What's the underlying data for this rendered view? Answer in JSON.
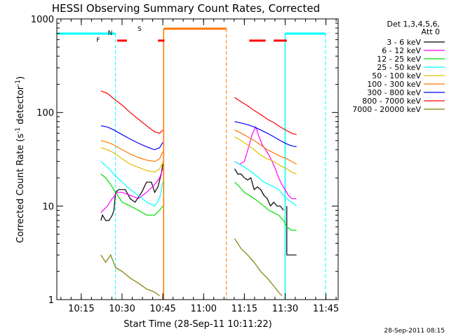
{
  "chart_data": {
    "type": "line",
    "title": "HESSI Observing Summary Count Rates, Corrected",
    "xlabel": "Start Time (28-Sep-11 10:11:22)",
    "ylabel_parts": [
      "Corrected Count Rate (s",
      "-1",
      " detector",
      "-1",
      ")"
    ],
    "y_scale": "log",
    "ylim": [
      1,
      1000
    ],
    "y_ticks": [
      {
        "v": 1,
        "label": "1"
      },
      {
        "v": 10,
        "label": "10"
      },
      {
        "v": 100,
        "label": "100"
      },
      {
        "v": 1000,
        "label": "1000"
      }
    ],
    "xlim": [
      10.1,
      11.825
    ],
    "x_ticks": [
      {
        "v": 10.25,
        "label": "10:15"
      },
      {
        "v": 10.5,
        "label": "10:30"
      },
      {
        "v": 10.75,
        "label": "10:45"
      },
      {
        "v": 11.0,
        "label": "11:00"
      },
      {
        "v": 11.25,
        "label": "11:15"
      },
      {
        "v": 11.5,
        "label": "11:30"
      },
      {
        "v": 11.75,
        "label": "11:45"
      }
    ],
    "legend_header": [
      "Det 1,3,4,5,6,",
      "Att 0"
    ],
    "legend_placement": "right",
    "series": [
      {
        "name": "3 - 6 keV",
        "color": "#000000",
        "ranges": [
          [
            [
              10.37,
              7
            ],
            [
              10.38,
              8
            ],
            [
              10.4,
              7
            ],
            [
              10.42,
              7
            ],
            [
              10.44,
              8
            ],
            [
              10.45,
              9
            ],
            [
              10.46,
              14
            ],
            [
              10.48,
              15
            ],
            [
              10.52,
              15
            ],
            [
              10.55,
              12
            ],
            [
              10.58,
              11
            ],
            [
              10.62,
              14
            ],
            [
              10.65,
              18
            ],
            [
              10.68,
              18
            ],
            [
              10.7,
              14
            ],
            [
              10.72,
              16
            ],
            [
              10.74,
              22
            ],
            [
              10.75,
              28
            ]
          ],
          [
            [
              11.19,
              25
            ],
            [
              11.21,
              22
            ],
            [
              11.23,
              22
            ],
            [
              11.25,
              20
            ],
            [
              11.27,
              19
            ],
            [
              11.29,
              20
            ],
            [
              11.31,
              15
            ],
            [
              11.33,
              16
            ],
            [
              11.35,
              15
            ],
            [
              11.37,
              13
            ],
            [
              11.39,
              12
            ],
            [
              11.41,
              10
            ],
            [
              11.43,
              11
            ],
            [
              11.45,
              10
            ],
            [
              11.47,
              10
            ],
            [
              11.49,
              9
            ]
          ],
          [
            [
              11.51,
              10
            ],
            [
              11.51,
              3
            ],
            [
              11.53,
              3
            ],
            [
              11.55,
              3
            ],
            [
              11.57,
              3
            ]
          ]
        ]
      },
      {
        "name": "6 - 12 keV",
        "color": "#ff00ff",
        "ranges": [
          [
            [
              10.37,
              8.5
            ],
            [
              10.41,
              10
            ],
            [
              10.44,
              12
            ],
            [
              10.47,
              14
            ],
            [
              10.5,
              14
            ],
            [
              10.55,
              13
            ],
            [
              10.6,
              12
            ],
            [
              10.65,
              14
            ],
            [
              10.7,
              17
            ],
            [
              10.73,
              20
            ],
            [
              10.75,
              25
            ]
          ],
          [
            [
              11.19,
              30
            ],
            [
              11.22,
              28
            ],
            [
              11.25,
              30
            ],
            [
              11.28,
              45
            ],
            [
              11.3,
              60
            ],
            [
              11.32,
              70
            ],
            [
              11.34,
              55
            ],
            [
              11.36,
              45
            ],
            [
              11.38,
              40
            ],
            [
              11.4,
              35
            ],
            [
              11.42,
              30
            ],
            [
              11.44,
              25
            ],
            [
              11.46,
              20
            ],
            [
              11.48,
              17
            ],
            [
              11.5,
              15
            ],
            [
              11.52,
              13
            ],
            [
              11.54,
              12
            ],
            [
              11.56,
              12
            ],
            [
              11.57,
              12
            ]
          ]
        ]
      },
      {
        "name": "12 - 25 keV",
        "color": "#00dd00",
        "ranges": [
          [
            [
              10.37,
              22
            ],
            [
              10.4,
              20
            ],
            [
              10.43,
              17
            ],
            [
              10.46,
              14
            ],
            [
              10.5,
              11
            ],
            [
              10.55,
              10
            ],
            [
              10.6,
              9
            ],
            [
              10.65,
              8
            ],
            [
              10.7,
              8
            ],
            [
              10.73,
              9
            ],
            [
              10.75,
              10
            ]
          ],
          [
            [
              11.19,
              18
            ],
            [
              11.22,
              16
            ],
            [
              11.25,
              14
            ],
            [
              11.28,
              13
            ],
            [
              11.31,
              12
            ],
            [
              11.34,
              11
            ],
            [
              11.37,
              10
            ],
            [
              11.4,
              9
            ],
            [
              11.43,
              8.5
            ],
            [
              11.46,
              8
            ],
            [
              11.49,
              7
            ],
            [
              11.51,
              6
            ],
            [
              11.54,
              5.5
            ],
            [
              11.57,
              5.5
            ]
          ]
        ]
      },
      {
        "name": "25 - 50 keV",
        "color": "#00ffff",
        "ranges": [
          [
            [
              10.37,
              30
            ],
            [
              10.4,
              27
            ],
            [
              10.43,
              24
            ],
            [
              10.46,
              21
            ],
            [
              10.5,
              18
            ],
            [
              10.55,
              15
            ],
            [
              10.6,
              13
            ],
            [
              10.65,
              11
            ],
            [
              10.7,
              10
            ],
            [
              10.73,
              12
            ],
            [
              10.75,
              18
            ]
          ],
          [
            [
              11.19,
              30
            ],
            [
              11.22,
              28
            ],
            [
              11.25,
              26
            ],
            [
              11.28,
              24
            ],
            [
              11.31,
              22
            ],
            [
              11.34,
              20
            ],
            [
              11.37,
              18
            ],
            [
              11.4,
              17
            ],
            [
              11.43,
              16
            ],
            [
              11.46,
              15
            ],
            [
              11.49,
              13
            ],
            [
              11.51,
              12
            ],
            [
              11.54,
              11
            ],
            [
              11.57,
              10
            ]
          ]
        ]
      },
      {
        "name": "50 - 100 keV",
        "color": "#e0c000",
        "ranges": [
          [
            [
              10.37,
              42
            ],
            [
              10.41,
              40
            ],
            [
              10.45,
              37
            ],
            [
              10.5,
              32
            ],
            [
              10.55,
              28
            ],
            [
              10.6,
              26
            ],
            [
              10.65,
              24
            ],
            [
              10.7,
              23
            ],
            [
              10.73,
              25
            ],
            [
              10.75,
              30
            ]
          ],
          [
            [
              11.19,
              55
            ],
            [
              11.23,
              50
            ],
            [
              11.27,
              45
            ],
            [
              11.31,
              40
            ],
            [
              11.35,
              35
            ],
            [
              11.39,
              32
            ],
            [
              11.43,
              30
            ],
            [
              11.47,
              27
            ],
            [
              11.51,
              25
            ],
            [
              11.54,
              23
            ],
            [
              11.57,
              22
            ]
          ]
        ]
      },
      {
        "name": "100 - 300 keV",
        "color": "#ff7700",
        "ranges": [
          [
            [
              10.37,
              50
            ],
            [
              10.41,
              48
            ],
            [
              10.45,
              45
            ],
            [
              10.5,
              40
            ],
            [
              10.55,
              36
            ],
            [
              10.6,
              33
            ],
            [
              10.65,
              31
            ],
            [
              10.7,
              30
            ],
            [
              10.73,
              32
            ],
            [
              10.75,
              38
            ]
          ],
          [
            [
              11.19,
              65
            ],
            [
              11.23,
              60
            ],
            [
              11.27,
              55
            ],
            [
              11.31,
              50
            ],
            [
              11.35,
              45
            ],
            [
              11.39,
              40
            ],
            [
              11.43,
              37
            ],
            [
              11.47,
              34
            ],
            [
              11.51,
              32
            ],
            [
              11.54,
              30
            ],
            [
              11.57,
              28
            ]
          ]
        ]
      },
      {
        "name": "300 - 800 keV",
        "color": "#0000ff",
        "ranges": [
          [
            [
              10.37,
              72
            ],
            [
              10.41,
              70
            ],
            [
              10.45,
              65
            ],
            [
              10.5,
              58
            ],
            [
              10.55,
              52
            ],
            [
              10.6,
              47
            ],
            [
              10.65,
              43
            ],
            [
              10.7,
              40
            ],
            [
              10.73,
              42
            ],
            [
              10.75,
              48
            ]
          ],
          [
            [
              11.19,
              80
            ],
            [
              11.23,
              77
            ],
            [
              11.27,
              74
            ],
            [
              11.31,
              70
            ],
            [
              11.35,
              65
            ],
            [
              11.39,
              60
            ],
            [
              11.43,
              55
            ],
            [
              11.47,
              50
            ],
            [
              11.51,
              46
            ],
            [
              11.54,
              44
            ],
            [
              11.57,
              43
            ]
          ]
        ]
      },
      {
        "name": "800 - 7000 keV",
        "color": "#ff0000",
        "ranges": [
          [
            [
              10.37,
              170
            ],
            [
              10.41,
              160
            ],
            [
              10.45,
              140
            ],
            [
              10.5,
              120
            ],
            [
              10.55,
              100
            ],
            [
              10.6,
              85
            ],
            [
              10.65,
              72
            ],
            [
              10.7,
              62
            ],
            [
              10.73,
              60
            ],
            [
              10.75,
              65
            ]
          ],
          [
            [
              11.19,
              145
            ],
            [
              11.23,
              130
            ],
            [
              11.27,
              118
            ],
            [
              11.31,
              105
            ],
            [
              11.35,
              95
            ],
            [
              11.39,
              85
            ],
            [
              11.43,
              78
            ],
            [
              11.47,
              70
            ],
            [
              11.51,
              64
            ],
            [
              11.54,
              60
            ],
            [
              11.57,
              58
            ]
          ]
        ]
      },
      {
        "name": "7000 - 20000 keV",
        "color": "#808000",
        "ranges": [
          [
            [
              10.37,
              3
            ],
            [
              10.4,
              2.5
            ],
            [
              10.43,
              3
            ],
            [
              10.46,
              2.2
            ],
            [
              10.5,
              2
            ],
            [
              10.55,
              1.7
            ],
            [
              10.6,
              1.5
            ],
            [
              10.65,
              1.3
            ],
            [
              10.7,
              1.2
            ],
            [
              10.73,
              1.1
            ]
          ],
          [
            [
              11.19,
              4.5
            ],
            [
              11.23,
              3.5
            ],
            [
              11.27,
              3
            ],
            [
              11.31,
              2.5
            ],
            [
              11.35,
              2
            ],
            [
              11.39,
              1.7
            ],
            [
              11.43,
              1.4
            ],
            [
              11.46,
              1.2
            ],
            [
              11.48,
              1.1
            ]
          ]
        ]
      }
    ],
    "flags": [
      {
        "label": "F",
        "color": "#ff0000"
      },
      {
        "label": "N",
        "color": "#00ffff"
      },
      {
        "label": "S",
        "color": "#ff7700"
      }
    ],
    "timestamp": "28-Sep-2011 08:15"
  }
}
